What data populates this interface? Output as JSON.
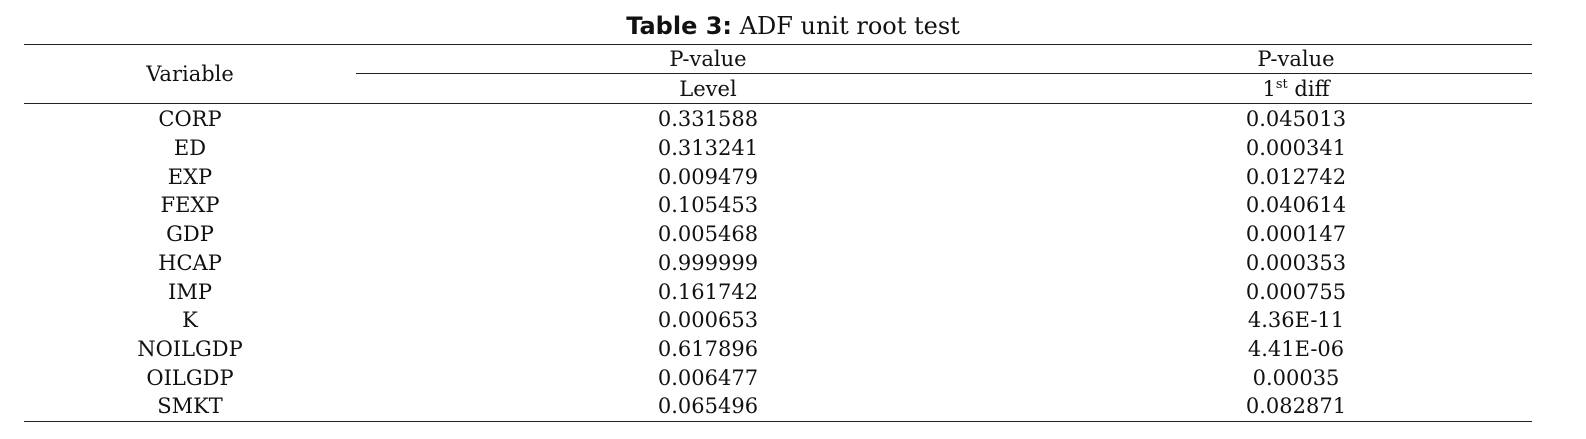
{
  "title": {
    "label": "Table 3:",
    "text": "ADF unit root test"
  },
  "header": {
    "variable": "Variable",
    "pvalue_1": "P-value",
    "pvalue_2": "P-value",
    "level": "Level",
    "diff_num": "1",
    "diff_sup": "st",
    "diff_text": " diff"
  },
  "rows": [
    {
      "variable": "CORP",
      "level": "0.331588",
      "diff": "0.045013"
    },
    {
      "variable": "ED",
      "level": "0.313241",
      "diff": "0.000341"
    },
    {
      "variable": "EXP",
      "level": "0.009479",
      "diff": "0.012742"
    },
    {
      "variable": "FEXP",
      "level": "0.105453",
      "diff": "0.040614"
    },
    {
      "variable": "GDP",
      "level": "0.005468",
      "diff": "0.000147"
    },
    {
      "variable": "HCAP",
      "level": "0.999999",
      "diff": "0.000353"
    },
    {
      "variable": "IMP",
      "level": "0.161742",
      "diff": "0.000755"
    },
    {
      "variable": "K",
      "level": "0.000653",
      "diff": "4.36E-11"
    },
    {
      "variable": "NOILGDP",
      "level": "0.617896",
      "diff": "4.41E-06"
    },
    {
      "variable": "OILGDP",
      "level": "0.006477",
      "diff": "0.00035"
    },
    {
      "variable": "SMKT",
      "level": "0.065496",
      "diff": "0.082871"
    }
  ]
}
